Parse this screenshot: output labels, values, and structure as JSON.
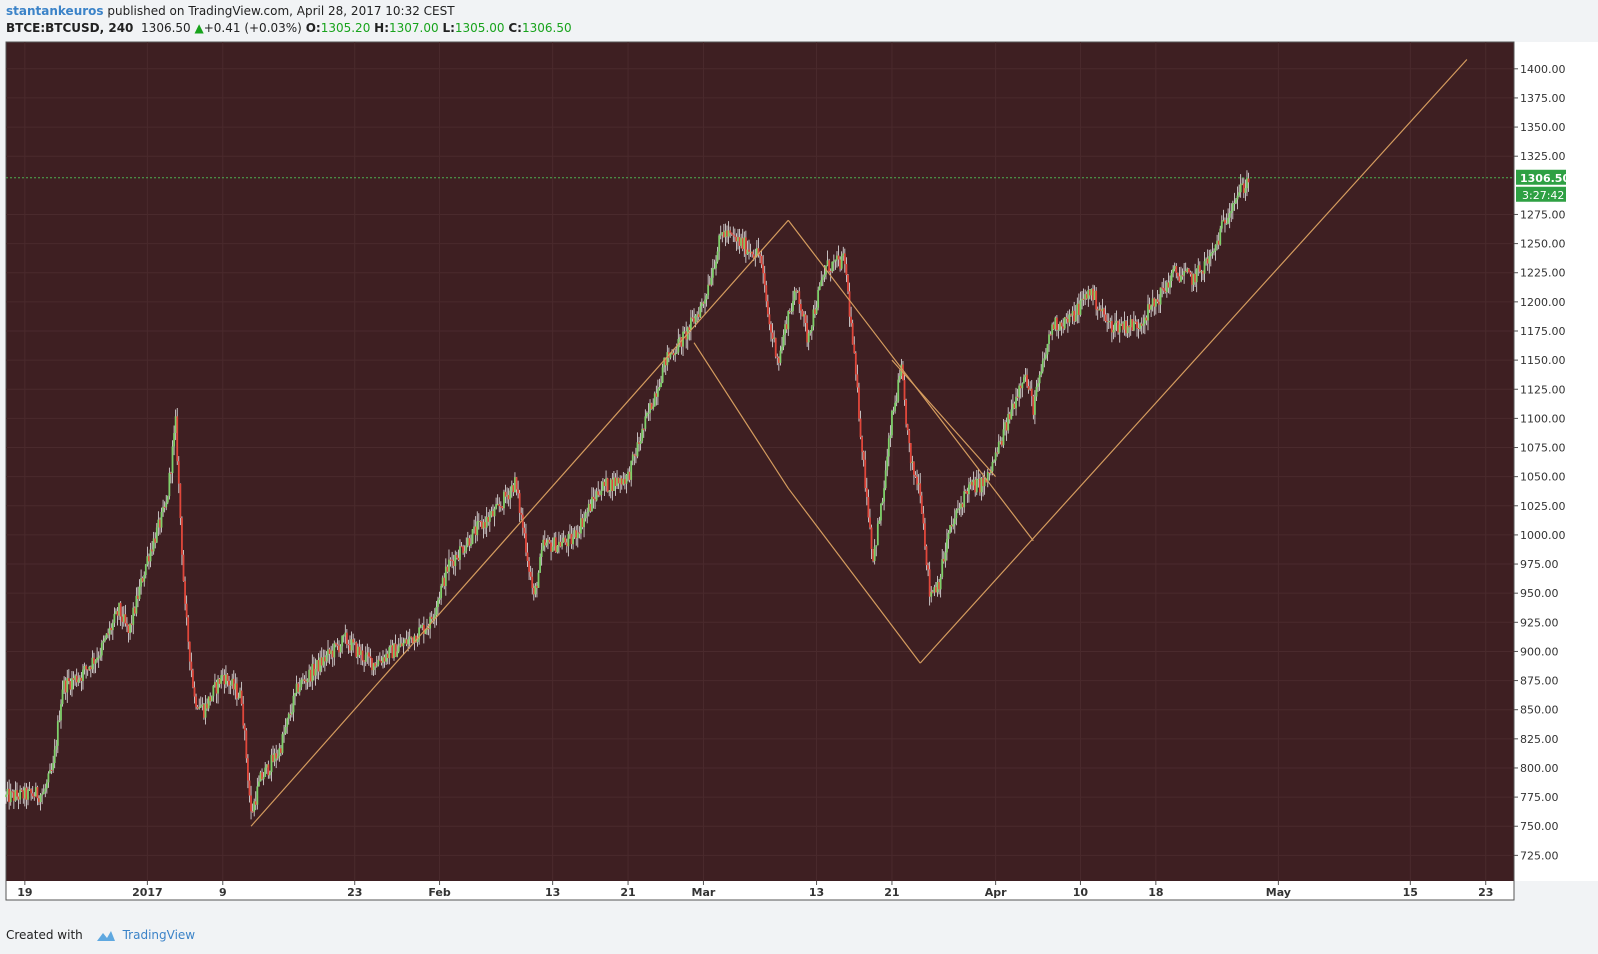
{
  "header": {
    "author": "stantankeuros",
    "published_text": "published on TradingView.com, April 28, 2017 10:32 CEST",
    "symbol": "BTCE:BTCUSD, 240",
    "last_price": "1306.50",
    "change": "+0.41 (+0.03%)",
    "open_label": "O:",
    "open": "1305.20",
    "high_label": "H:",
    "high": "1307.00",
    "low_label": "L:",
    "low": "1305.00",
    "close_label": "C:",
    "close": "1306.50"
  },
  "footer": {
    "created_with": "Created with",
    "brand": "TradingView"
  },
  "colors": {
    "background": "#3e1f22",
    "grid": "#4a2a2d",
    "up": "#7fd06b",
    "down": "#e0473b",
    "wick": "#e6e6e6",
    "pattern_lines": "#d59c5f",
    "price_line": "#4caf50",
    "price_label_bg": "#2ea043"
  },
  "chart_data": {
    "type": "candlestick",
    "y_ticks": [
      "725.00",
      "750.00",
      "775.00",
      "800.00",
      "825.00",
      "850.00",
      "875.00",
      "900.00",
      "925.00",
      "950.00",
      "975.00",
      "1000.00",
      "1025.00",
      "1050.00",
      "1075.00",
      "1100.00",
      "1125.00",
      "1150.00",
      "1175.00",
      "1200.00",
      "1225.00",
      "1250.00",
      "1275.00",
      "1325.00",
      "1350.00",
      "1375.00",
      "1400.00"
    ],
    "ylim": [
      703,
      1423
    ],
    "x_labels": [
      {
        "label": "19",
        "date": "2016-12-19"
      },
      {
        "label": "2017",
        "date": "2017-01-01"
      },
      {
        "label": "9",
        "date": "2017-01-09"
      },
      {
        "label": "23",
        "date": "2017-01-23"
      },
      {
        "label": "Feb",
        "date": "2017-02-01"
      },
      {
        "label": "13",
        "date": "2017-02-13"
      },
      {
        "label": "21",
        "date": "2017-02-21"
      },
      {
        "label": "Mar",
        "date": "2017-03-01"
      },
      {
        "label": "13",
        "date": "2017-03-13"
      },
      {
        "label": "21",
        "date": "2017-03-21"
      },
      {
        "label": "Apr",
        "date": "2017-04-01"
      },
      {
        "label": "10",
        "date": "2017-04-10"
      },
      {
        "label": "18",
        "date": "2017-04-18"
      },
      {
        "label": "May",
        "date": "2017-05-01"
      },
      {
        "label": "15",
        "date": "2017-05-15"
      },
      {
        "label": "23",
        "date": "2017-05-23"
      }
    ],
    "xlim": [
      "2016-12-17",
      "2017-05-26"
    ],
    "price_path": [
      [
        "2016-12-17",
        775
      ],
      [
        "2016-12-21",
        778
      ],
      [
        "2016-12-22",
        800
      ],
      [
        "2016-12-23",
        870
      ],
      [
        "2016-12-25",
        880
      ],
      [
        "2016-12-27",
        900
      ],
      [
        "2016-12-29",
        935
      ],
      [
        "2016-12-30",
        915
      ],
      [
        "2017-01-01",
        980
      ],
      [
        "2017-01-03",
        1025
      ],
      [
        "2017-01-04",
        1095
      ],
      [
        "2017-01-05",
        935
      ],
      [
        "2017-01-06",
        860
      ],
      [
        "2017-01-07",
        850
      ],
      [
        "2017-01-09",
        880
      ],
      [
        "2017-01-11",
        860
      ],
      [
        "2017-01-12",
        760
      ],
      [
        "2017-01-13",
        790
      ],
      [
        "2017-01-15",
        815
      ],
      [
        "2017-01-17",
        870
      ],
      [
        "2017-01-20",
        895
      ],
      [
        "2017-01-22",
        910
      ],
      [
        "2017-01-24",
        895
      ],
      [
        "2017-01-25",
        890
      ],
      [
        "2017-01-28",
        905
      ],
      [
        "2017-01-31",
        925
      ],
      [
        "2017-02-02",
        975
      ],
      [
        "2017-02-05",
        1005
      ],
      [
        "2017-02-07",
        1020
      ],
      [
        "2017-02-09",
        1045
      ],
      [
        "2017-02-10",
        1000
      ],
      [
        "2017-02-11",
        945
      ],
      [
        "2017-02-12",
        990
      ],
      [
        "2017-02-15",
        995
      ],
      [
        "2017-02-18",
        1040
      ],
      [
        "2017-02-21",
        1050
      ],
      [
        "2017-02-23",
        1100
      ],
      [
        "2017-02-25",
        1150
      ],
      [
        "2017-02-27",
        1170
      ],
      [
        "2017-03-01",
        1200
      ],
      [
        "2017-03-03",
        1260
      ],
      [
        "2017-03-05",
        1250
      ],
      [
        "2017-03-07",
        1240
      ],
      [
        "2017-03-08",
        1180
      ],
      [
        "2017-03-09",
        1150
      ],
      [
        "2017-03-10",
        1190
      ],
      [
        "2017-03-11",
        1210
      ],
      [
        "2017-03-12",
        1170
      ],
      [
        "2017-03-14",
        1230
      ],
      [
        "2017-03-16",
        1235
      ],
      [
        "2017-03-17",
        1150
      ],
      [
        "2017-03-18",
        1060
      ],
      [
        "2017-03-19",
        980
      ],
      [
        "2017-03-20",
        1030
      ],
      [
        "2017-03-21",
        1100
      ],
      [
        "2017-03-22",
        1140
      ],
      [
        "2017-03-23",
        1060
      ],
      [
        "2017-03-24",
        1040
      ],
      [
        "2017-03-25",
        950
      ],
      [
        "2017-03-26",
        960
      ],
      [
        "2017-03-27",
        1000
      ],
      [
        "2017-03-29",
        1040
      ],
      [
        "2017-03-31",
        1045
      ],
      [
        "2017-04-02",
        1090
      ],
      [
        "2017-04-04",
        1140
      ],
      [
        "2017-04-05",
        1110
      ],
      [
        "2017-04-07",
        1180
      ],
      [
        "2017-04-09",
        1185
      ],
      [
        "2017-04-11",
        1210
      ],
      [
        "2017-04-13",
        1180
      ],
      [
        "2017-04-16",
        1180
      ],
      [
        "2017-04-18",
        1200
      ],
      [
        "2017-04-20",
        1225
      ],
      [
        "2017-04-22",
        1220
      ],
      [
        "2017-04-24",
        1240
      ],
      [
        "2017-04-26",
        1285
      ],
      [
        "2017-04-28",
        1306.5
      ]
    ],
    "current_price": 1306.5,
    "current_price_label": "1306.50",
    "countdown_label": "3:27:42",
    "drawings": [
      {
        "name": "channel-left-line",
        "points": [
          [
            "2017-01-12",
            750
          ],
          [
            "2017-03-10",
            1270
          ]
        ]
      },
      {
        "name": "channel-right-line",
        "points": [
          [
            "2017-03-24",
            890
          ],
          [
            "2017-05-21",
            1408
          ]
        ]
      },
      {
        "name": "channel-top-line",
        "points": [
          [
            "2017-03-10",
            1270
          ],
          [
            "2017-04-05",
            995
          ]
        ]
      },
      {
        "name": "inner-left-line",
        "points": [
          [
            "2017-02-28",
            1165
          ],
          [
            "2017-03-10",
            1040
          ]
        ]
      },
      {
        "name": "inner-mid-line",
        "points": [
          [
            "2017-03-10",
            1040
          ],
          [
            "2017-03-24",
            890
          ]
        ]
      },
      {
        "name": "inner-top-line",
        "points": [
          [
            "2017-03-21",
            1150
          ],
          [
            "2017-04-01",
            1050
          ]
        ]
      }
    ]
  }
}
